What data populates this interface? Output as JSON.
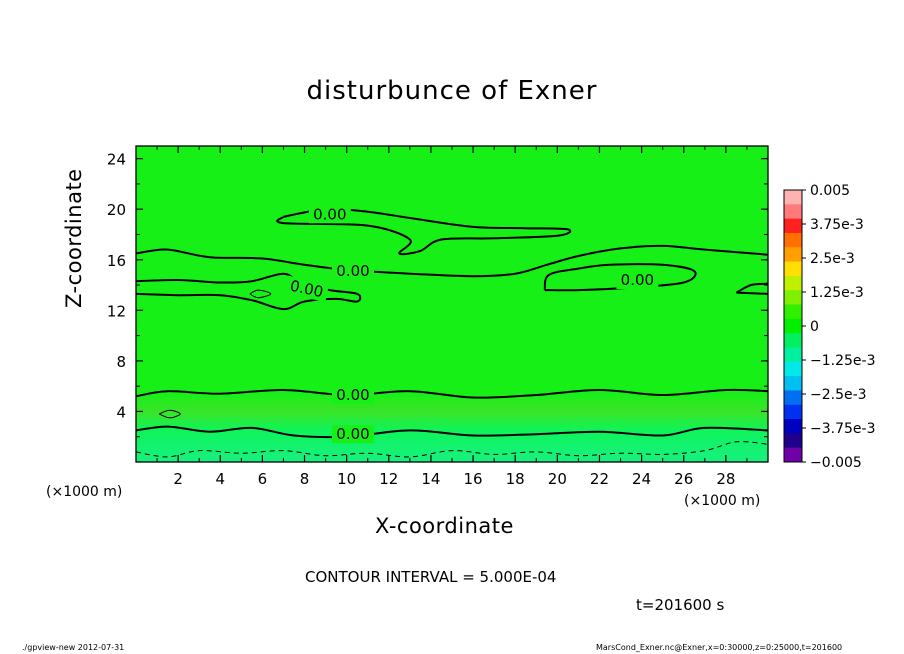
{
  "title": "disturbunce of Exner",
  "xlabel": "X-coordinate",
  "ylabel": "Z-coordinate",
  "xunit_left": "(×1000 m)",
  "xunit_right": "(×1000 m)",
  "contour_interval": "CONTOUR INTERVAL = 5.000E-04",
  "time_label": "t=201600 s",
  "footer_left": "./gpview-new   2012-07-31",
  "footer_right": "MarsCond_Exner.nc@Exner,x=0:30000,z=0:25000,t=201600",
  "colors": {
    "field_main": "#16f016",
    "field_light": "#3ae428",
    "field_low": "#0ef45a",
    "field_bottom": "#18f080"
  },
  "chart_data": {
    "type": "contour",
    "x_range": [
      0,
      30
    ],
    "y_range": [
      0,
      25
    ],
    "x_ticks": [
      2,
      4,
      6,
      8,
      10,
      12,
      14,
      16,
      18,
      20,
      22,
      24,
      26,
      28
    ],
    "x_tick_labels": [
      "2",
      "4",
      "6",
      "8",
      "10",
      "12",
      "14",
      "16",
      "18",
      "20",
      "22",
      "24",
      "26",
      "28"
    ],
    "y_ticks": [
      4,
      8,
      12,
      16,
      20,
      24
    ],
    "y_tick_labels": [
      "4",
      "8",
      "12",
      "16",
      "20",
      "24"
    ],
    "contour_levels_labeled": [
      {
        "text": "0.00",
        "x": 9.2,
        "y": 19.6
      },
      {
        "text": "0.00",
        "x": 10.3,
        "y": 15.1
      },
      {
        "text": "0.00",
        "x": 8.1,
        "y": 13.7
      },
      {
        "text": "0.00",
        "x": 23.8,
        "y": 14.4
      },
      {
        "text": "0.00",
        "x": 10.3,
        "y": 5.3
      },
      {
        "text": "0.00",
        "x": 10.3,
        "y": 2.2
      }
    ],
    "contour_lines": [
      [
        [
          0,
          16.5
        ],
        [
          1.5,
          16.8
        ],
        [
          3.5,
          16.2
        ],
        [
          6,
          16.1
        ],
        [
          8,
          15.6
        ],
        [
          10,
          15.2
        ],
        [
          13,
          14.9
        ],
        [
          16,
          14.7
        ],
        [
          18,
          14.9
        ],
        [
          19.5,
          15.6
        ],
        [
          21,
          16.3
        ],
        [
          23,
          16.9
        ],
        [
          25,
          17.1
        ],
        [
          27,
          16.8
        ],
        [
          30,
          16.4
        ]
      ],
      [
        [
          7,
          19.4
        ],
        [
          9,
          20.0
        ],
        [
          11,
          19.8
        ],
        [
          13,
          19.3
        ],
        [
          16,
          18.6
        ],
        [
          18.5,
          18.5
        ],
        [
          20.5,
          18.4
        ],
        [
          20,
          17.9
        ],
        [
          17,
          17.7
        ],
        [
          14.5,
          17.6
        ],
        [
          13.5,
          16.7
        ],
        [
          12.5,
          16.5
        ],
        [
          13,
          17.6
        ],
        [
          11,
          18.7
        ],
        [
          7,
          18.9
        ],
        [
          7,
          19.4
        ]
      ],
      [
        [
          0,
          14.3
        ],
        [
          2,
          14.4
        ],
        [
          4,
          14.2
        ],
        [
          5.5,
          14.3
        ],
        [
          7,
          14.9
        ],
        [
          7.8,
          14.2
        ],
        [
          9.2,
          13.6
        ],
        [
          10.5,
          13.3
        ],
        [
          10.5,
          12.7
        ],
        [
          9.5,
          12.9
        ],
        [
          8,
          12.7
        ],
        [
          7,
          12.1
        ],
        [
          5.5,
          12.8
        ],
        [
          4,
          13.2
        ],
        [
          2,
          13.2
        ],
        [
          0,
          13.3
        ]
      ],
      [
        [
          5.4,
          13.3
        ],
        [
          5.8,
          13.6
        ],
        [
          6.4,
          13.3
        ],
        [
          5.8,
          13.0
        ],
        [
          5.4,
          13.3
        ]
      ],
      [
        [
          19.4,
          13.6
        ],
        [
          19.6,
          14.8
        ],
        [
          21,
          15.3
        ],
        [
          22.5,
          15.6
        ],
        [
          25,
          15.6
        ],
        [
          26.5,
          15.1
        ],
        [
          26,
          14.2
        ],
        [
          23.5,
          13.8
        ],
        [
          21,
          13.6
        ],
        [
          19.4,
          13.6
        ]
      ],
      [
        [
          28.5,
          13.4
        ],
        [
          29.2,
          14.0
        ],
        [
          30,
          14.1
        ]
      ],
      [
        [
          28.5,
          13.4
        ],
        [
          30,
          13.3
        ]
      ],
      [
        [
          0,
          5.2
        ],
        [
          1.5,
          5.6
        ],
        [
          4,
          5.4
        ],
        [
          7,
          5.7
        ],
        [
          10,
          5.3
        ],
        [
          13,
          5.6
        ],
        [
          16,
          5.1
        ],
        [
          19,
          5.3
        ],
        [
          22,
          5.7
        ],
        [
          25,
          5.3
        ],
        [
          28,
          5.7
        ],
        [
          30,
          5.6
        ]
      ],
      [
        [
          1.1,
          3.8
        ],
        [
          1.6,
          4.1
        ],
        [
          2.1,
          3.8
        ],
        [
          1.6,
          3.5
        ],
        [
          1.1,
          3.8
        ]
      ],
      [
        [
          0,
          2.5
        ],
        [
          1.5,
          2.8
        ],
        [
          3.5,
          2.4
        ],
        [
          5.5,
          2.7
        ],
        [
          7.5,
          2.1
        ],
        [
          10,
          2.0
        ],
        [
          13,
          2.5
        ],
        [
          16,
          2.1
        ],
        [
          19,
          2.2
        ],
        [
          22,
          2.4
        ],
        [
          25,
          2.1
        ],
        [
          27,
          2.7
        ],
        [
          30,
          2.5
        ]
      ]
    ],
    "dashed_contour": [
      [
        0,
        0.8
      ],
      [
        1.5,
        0.4
      ],
      [
        3,
        0.9
      ],
      [
        5,
        0.7
      ],
      [
        7,
        0.9
      ],
      [
        9,
        0.5
      ],
      [
        11,
        0.7
      ],
      [
        13,
        0.4
      ],
      [
        15,
        0.9
      ],
      [
        17,
        0.6
      ],
      [
        19,
        0.8
      ],
      [
        21,
        0.5
      ],
      [
        23,
        0.7
      ],
      [
        25,
        0.6
      ],
      [
        27,
        0.9
      ],
      [
        28.5,
        1.6
      ],
      [
        30,
        1.4
      ]
    ],
    "colorbar": {
      "labels": [
        "0.005",
        "3.75e-3",
        "2.5e-3",
        "1.25e-3",
        "0",
        "−1.25e-3",
        "−2.5e-3",
        "−3.75e-3",
        "−0.005"
      ],
      "colors": [
        "#ffb2b2",
        "#ff7a7a",
        "#ff2020",
        "#ff7000",
        "#ffa000",
        "#ffe000",
        "#c0f000",
        "#80f000",
        "#30f000",
        "#00f000",
        "#00f060",
        "#00f0a0",
        "#00e8e8",
        "#00c0f0",
        "#0070f0",
        "#0030f0",
        "#0000c0",
        "#20008a",
        "#7000a8"
      ]
    }
  }
}
